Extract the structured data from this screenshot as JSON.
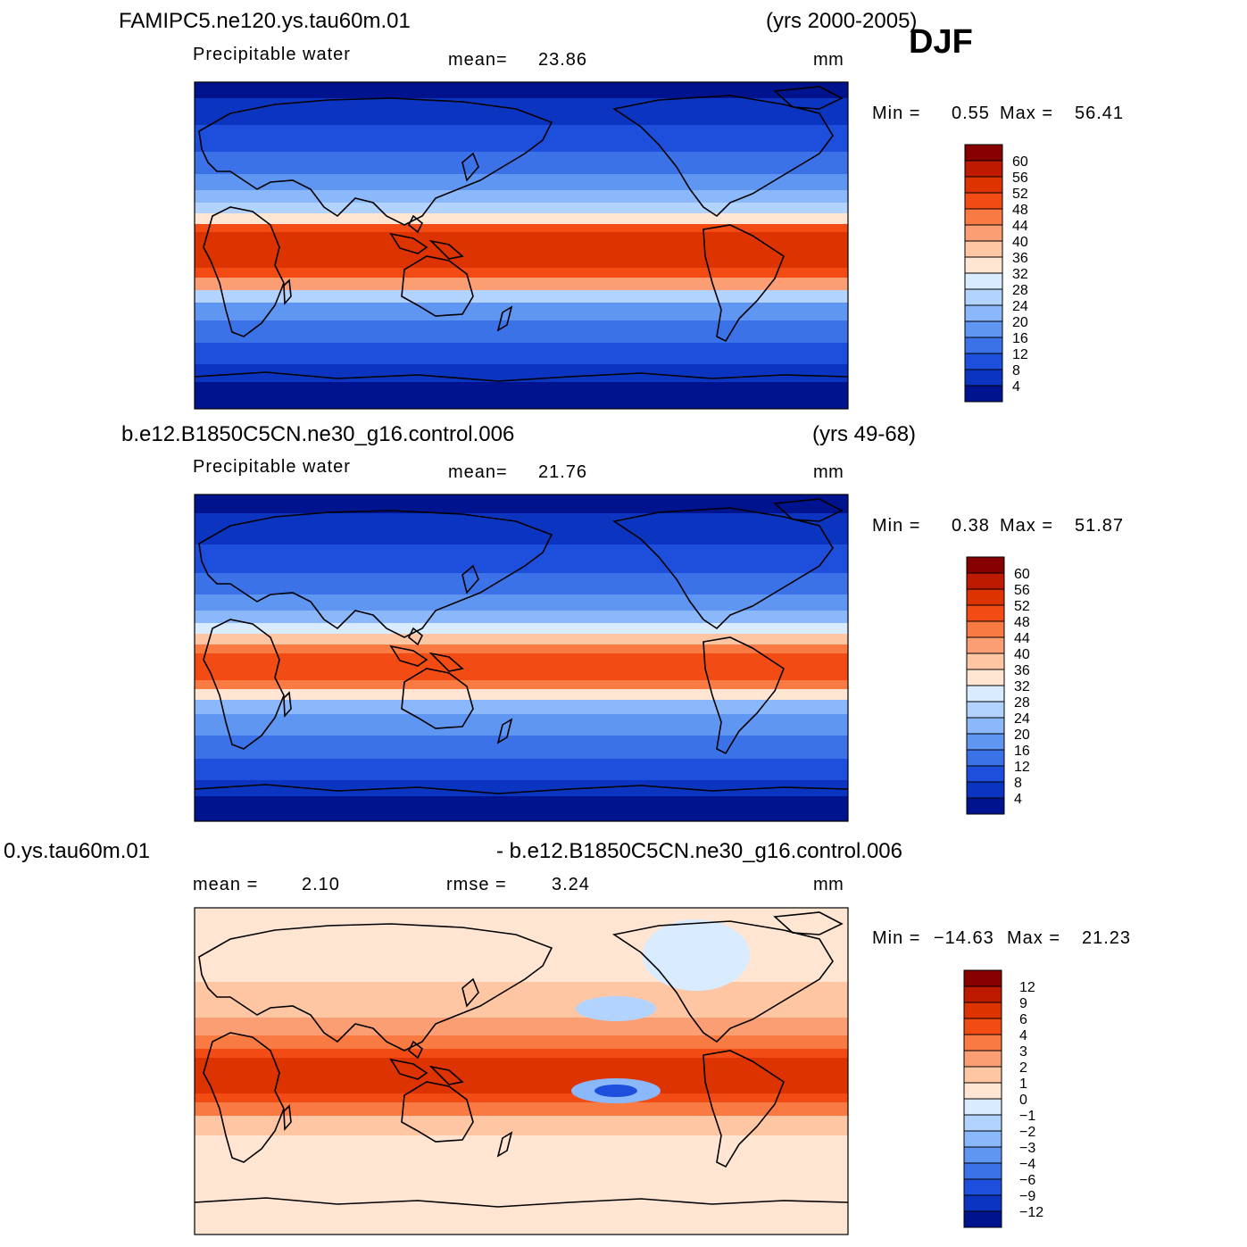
{
  "season": "DJF",
  "colors": {
    "ocean_dark": "#00138f",
    "land_line": "#000000"
  },
  "panels": [
    {
      "case": "FAMIPC5.ne120.ys.tau60m.01",
      "years": "(yrs 2000-2005)",
      "variable": "Precipitable water",
      "stat1_label": "mean=",
      "stat1_value": "23.86",
      "units": "mm",
      "min_label": "Min =",
      "min_value": "0.55",
      "max_label": "Max =",
      "max_value": "56.41",
      "levels": [
        "60",
        "56",
        "52",
        "48",
        "44",
        "40",
        "36",
        "32",
        "28",
        "24",
        "20",
        "16",
        "12",
        "8",
        "4"
      ],
      "palette": [
        "#870000",
        "#bd1a00",
        "#dd3300",
        "#f24b14",
        "#fa7a43",
        "#fc9e73",
        "#ffc6a3",
        "#ffe5d2",
        "#d9ecff",
        "#b3d3ff",
        "#8ab8fb",
        "#5f96f2",
        "#3b72e8",
        "#1d4fdc",
        "#0b35c0",
        "#00138f"
      ]
    },
    {
      "case": "b.e12.B1850C5CN.ne30_g16.control.006",
      "years": "(yrs 49-68)",
      "variable": "Precipitable water",
      "stat1_label": "mean=",
      "stat1_value": "21.76",
      "units": "mm",
      "min_label": "Min =",
      "min_value": "0.38",
      "max_label": "Max =",
      "max_value": "51.87",
      "levels": [
        "60",
        "56",
        "52",
        "48",
        "44",
        "40",
        "36",
        "32",
        "28",
        "24",
        "20",
        "16",
        "12",
        "8",
        "4"
      ],
      "palette": [
        "#870000",
        "#bd1a00",
        "#dd3300",
        "#f24b14",
        "#fa7a43",
        "#fc9e73",
        "#ffc6a3",
        "#ffe5d2",
        "#d9ecff",
        "#b3d3ff",
        "#8ab8fb",
        "#5f96f2",
        "#3b72e8",
        "#1d4fdc",
        "#0b35c0",
        "#00138f"
      ]
    },
    {
      "case_left": "0.ys.tau60m.01",
      "case_right": "- b.e12.B1850C5CN.ne30_g16.control.006",
      "stat1_label": "mean =",
      "stat1_value": "2.10",
      "stat2_label": "rmse =",
      "stat2_value": "3.24",
      "units": "mm",
      "min_label": "Min =",
      "min_value": "−14.63",
      "max_label": "Max =",
      "max_value": "21.23",
      "levels": [
        "12",
        "9",
        "6",
        "4",
        "3",
        "2",
        "1",
        "0",
        "−1",
        "−2",
        "−3",
        "−4",
        "−6",
        "−9",
        "−12"
      ],
      "palette": [
        "#870000",
        "#bd1a00",
        "#dd3300",
        "#f24b14",
        "#fa7a43",
        "#fc9e73",
        "#ffc6a3",
        "#ffe5d2",
        "#d9ecff",
        "#b3d3ff",
        "#8ab8fb",
        "#5f96f2",
        "#3b72e8",
        "#1d4fdc",
        "#0b35c0",
        "#00138f"
      ]
    }
  ]
}
